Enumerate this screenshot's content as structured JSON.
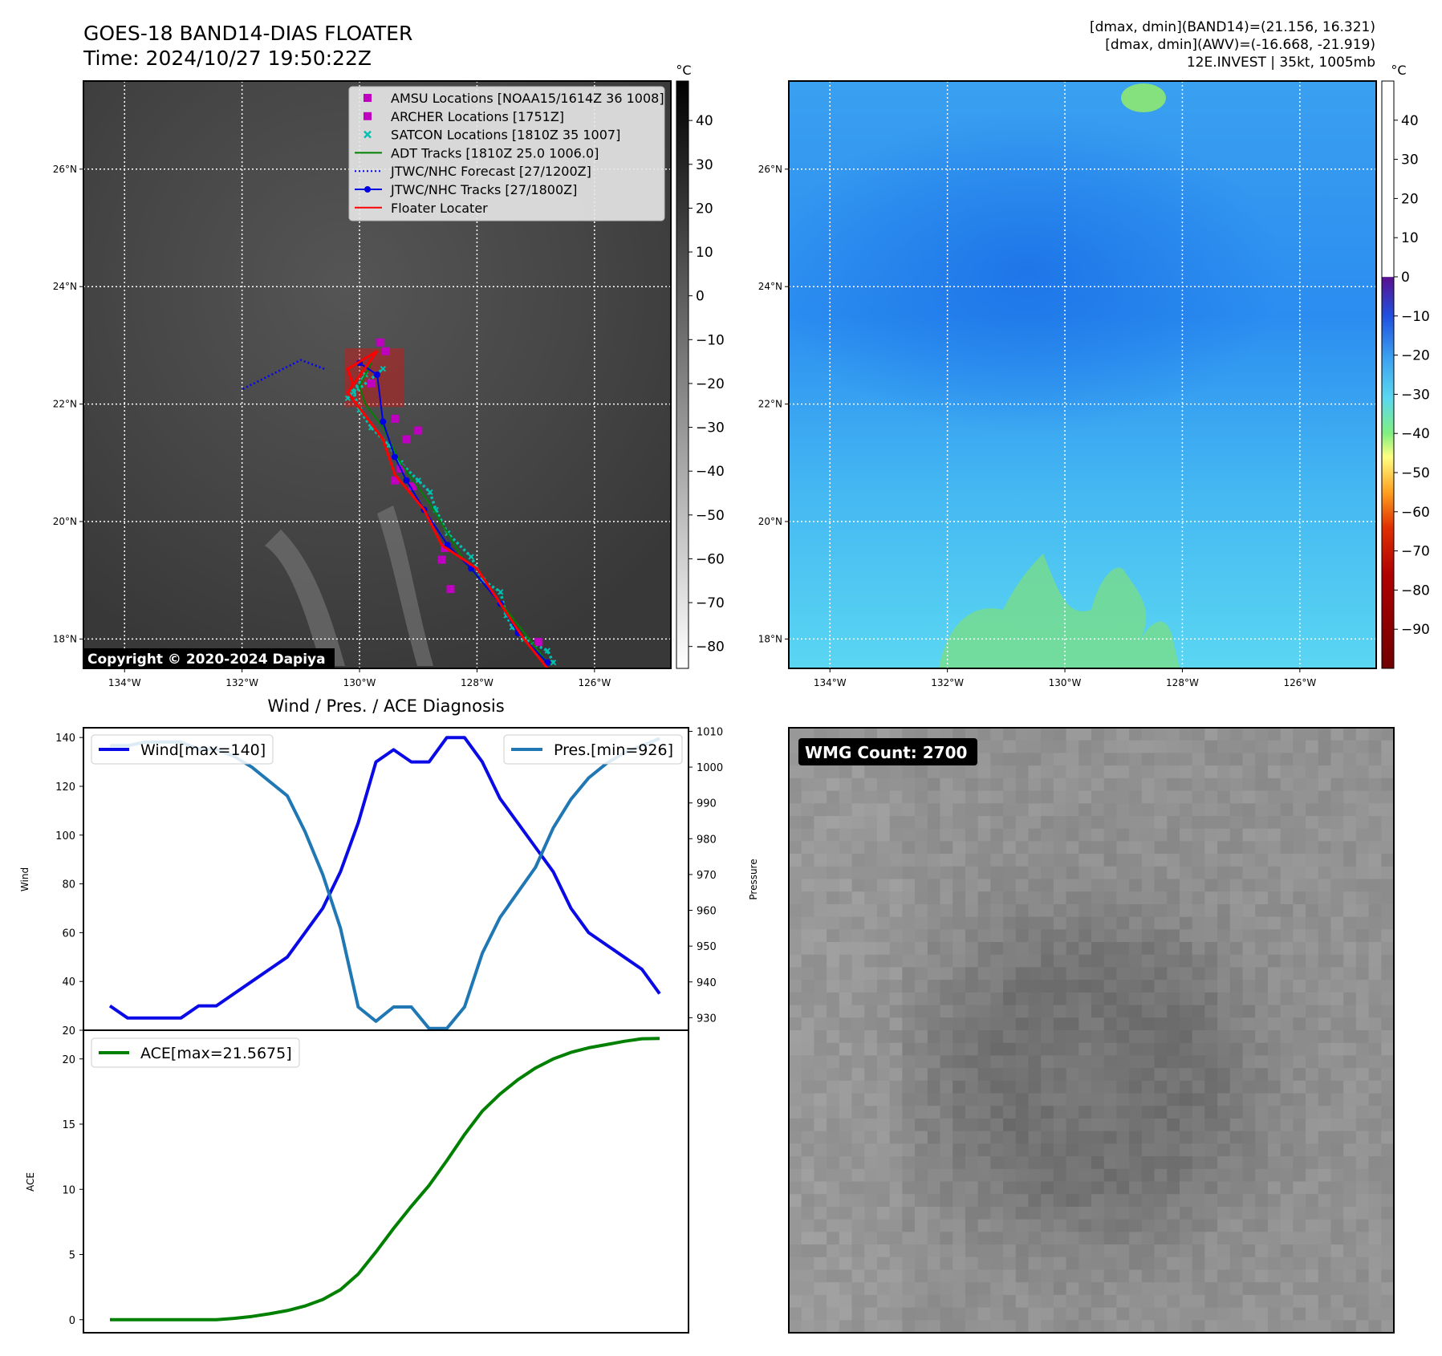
{
  "header": {
    "title": "GOES-18 BAND14-DIAS FLOATER",
    "time": "Time: 2024/10/27 19:50:22Z",
    "stats_band14": "[dmax, dmin](BAND14)=(21.156, 16.321)",
    "stats_awv": "[dmax, dmin](AWV)=(-16.668, -21.919)",
    "storm_info": "12E.INVEST | 35kt, 1005mb"
  },
  "colors": {
    "amsu": "#c000c0",
    "archer": "#c000c0",
    "satcon": "#00c0b0",
    "adt": "#008000",
    "jtwc_forecast": "#0000ff",
    "jtwc_track": "#0000e0",
    "floater": "#ff0000",
    "wind": "#0a0ae6",
    "pres": "#1f77b4",
    "ace": "#008000"
  },
  "map_ir": {
    "lon_range": [
      -134.7,
      -124.7
    ],
    "lat_range": [
      17.5,
      27.5
    ],
    "lon_ticks": [
      "134°W",
      "132°W",
      "130°W",
      "128°W",
      "126°W"
    ],
    "lon_tick_values": [
      -134,
      -132,
      -130,
      -128,
      -126
    ],
    "lat_ticks": [
      "26°N",
      "24°N",
      "22°N",
      "20°N",
      "18°N"
    ],
    "lat_tick_values": [
      26,
      24,
      22,
      20,
      18
    ],
    "copyright": "Copyright © 2020-2024 Dapiya",
    "colorbar_unit": "°C",
    "colorbar_ticks": [
      "40",
      "30",
      "20",
      "10",
      "0",
      "−10",
      "−20",
      "−30",
      "−40",
      "−50",
      "−60",
      "−70",
      "−80"
    ],
    "colorbar_tick_values": [
      40,
      30,
      20,
      10,
      0,
      -10,
      -20,
      -30,
      -40,
      -50,
      -60,
      -70,
      -80
    ],
    "colorbar_range": [
      -85,
      49
    ],
    "legend": [
      {
        "key": "amsu",
        "label": "AMSU Locations [NOAA15/1614Z 36 1008]"
      },
      {
        "key": "archer",
        "label": "ARCHER Locations [1751Z]"
      },
      {
        "key": "satcon",
        "label": "SATCON Locations [1810Z 35 1007]"
      },
      {
        "key": "adt",
        "label": "ADT Tracks [1810Z 25.0 1006.0]"
      },
      {
        "key": "jtwc_forecast",
        "label": "JTWC/NHC Forecast [27/1200Z]"
      },
      {
        "key": "jtwc_track",
        "label": "JTWC/NHC Tracks [27/1800Z]"
      },
      {
        "key": "floater",
        "label": "Floater Locater"
      }
    ],
    "jtwc_forecast_points": [
      [
        -130.6,
        22.6
      ],
      [
        -131.0,
        22.75
      ],
      [
        -132.0,
        22.25
      ]
    ],
    "jtwc_track_points": [
      [
        -126.8,
        17.6
      ],
      [
        -127.3,
        18.1
      ],
      [
        -127.6,
        18.6
      ],
      [
        -128.1,
        19.2
      ],
      [
        -128.5,
        19.6
      ],
      [
        -128.9,
        20.2
      ],
      [
        -129.2,
        20.7
      ],
      [
        -129.4,
        21.1
      ],
      [
        -129.6,
        21.7
      ],
      [
        -129.7,
        22.5
      ],
      [
        -130.0,
        22.7
      ]
    ],
    "floater_points": [
      [
        -126.8,
        17.5
      ],
      [
        -127.2,
        18.0
      ],
      [
        -127.6,
        18.6
      ],
      [
        -128.0,
        19.2
      ],
      [
        -128.6,
        19.6
      ],
      [
        -128.9,
        20.2
      ],
      [
        -129.4,
        20.8
      ],
      [
        -129.6,
        21.4
      ],
      [
        -129.9,
        21.8
      ],
      [
        -130.2,
        22.2
      ],
      [
        -129.7,
        22.9
      ],
      [
        -130.2,
        22.6
      ],
      [
        -130.1,
        22.3
      ]
    ],
    "adt_points": [
      [
        -126.8,
        17.6
      ],
      [
        -127.5,
        18.5
      ],
      [
        -128.2,
        19.3
      ],
      [
        -128.8,
        20.3
      ],
      [
        -129.3,
        21.0
      ],
      [
        -129.6,
        21.6
      ],
      [
        -129.9,
        22.0
      ],
      [
        -130.0,
        22.3
      ],
      [
        -129.8,
        22.7
      ]
    ],
    "satcon_points": [
      [
        -126.7,
        17.6
      ],
      [
        -126.8,
        17.8
      ],
      [
        -127.2,
        18.0
      ],
      [
        -127.4,
        18.2
      ],
      [
        -127.5,
        18.4
      ],
      [
        -127.6,
        18.8
      ],
      [
        -127.9,
        19.0
      ],
      [
        -128.1,
        19.4
      ],
      [
        -128.5,
        19.8
      ],
      [
        -128.7,
        20.2
      ],
      [
        -128.8,
        20.5
      ],
      [
        -129.0,
        20.7
      ],
      [
        -129.3,
        21.0
      ],
      [
        -129.5,
        21.3
      ],
      [
        -129.8,
        21.6
      ],
      [
        -130.0,
        21.9
      ],
      [
        -130.1,
        22.2
      ],
      [
        -129.9,
        22.5
      ],
      [
        -130.2,
        22.1
      ],
      [
        -129.6,
        22.6
      ]
    ],
    "amsu_points": [
      [
        -129.65,
        23.05
      ],
      [
        -129.55,
        22.9
      ],
      [
        -129.8,
        22.35
      ],
      [
        -129.4,
        21.75
      ],
      [
        -129.0,
        21.55
      ],
      [
        -129.2,
        21.4
      ],
      [
        -129.3,
        20.9
      ],
      [
        -129.4,
        20.7
      ],
      [
        -129.1,
        20.6
      ],
      [
        -128.55,
        19.55
      ],
      [
        -128.6,
        19.35
      ],
      [
        -128.45,
        18.85
      ],
      [
        -126.95,
        17.95
      ]
    ],
    "floater_box": {
      "lon": [
        -130.25,
        -129.25
      ],
      "lat": [
        21.95,
        22.95
      ]
    }
  },
  "map_awv": {
    "lon_range": [
      -134.7,
      -124.7
    ],
    "lat_range": [
      17.5,
      27.5
    ],
    "lon_ticks": [
      "134°W",
      "132°W",
      "130°W",
      "128°W",
      "126°W"
    ],
    "lon_tick_values": [
      -134,
      -132,
      -130,
      -128,
      -126
    ],
    "lat_ticks": [
      "26°N",
      "24°N",
      "22°N",
      "20°N",
      "18°N"
    ],
    "lat_tick_values": [
      26,
      24,
      22,
      20,
      18
    ],
    "colorbar_unit": "°C",
    "colorbar_ticks": [
      "40",
      "30",
      "20",
      "10",
      "0",
      "−10",
      "−20",
      "−30",
      "−40",
      "−50",
      "−60",
      "−70",
      "−80",
      "−90"
    ],
    "colorbar_tick_values": [
      40,
      30,
      20,
      10,
      0,
      -10,
      -20,
      -30,
      -40,
      -50,
      -60,
      -70,
      -80,
      -90
    ],
    "colorbar_range": [
      -100,
      50
    ]
  },
  "chart_data": [
    {
      "type": "line",
      "title": "Wind / Pres. / ACE Diagnosis",
      "ylabel": "Wind",
      "ylabel_right": "Pressure",
      "ylim": [
        20,
        144
      ],
      "ylim_right": [
        926.5,
        1011
      ],
      "yticks": [
        20,
        40,
        60,
        80,
        100,
        120,
        140
      ],
      "yticks_right": [
        930,
        940,
        950,
        960,
        970,
        980,
        990,
        1000,
        1010
      ],
      "series": [
        {
          "name": "Wind[max=140]",
          "axis": "left",
          "color": "#0a0ae6",
          "values": [
            30,
            25,
            25,
            25,
            25,
            30,
            30,
            35,
            40,
            45,
            50,
            60,
            70,
            85,
            105,
            130,
            135,
            130,
            130,
            140,
            140,
            130,
            115,
            105,
            95,
            85,
            70,
            60,
            55,
            50,
            45,
            35
          ]
        },
        {
          "name": "Pres.[min=926]",
          "axis": "right",
          "color": "#1f77b4",
          "values": [
            1006,
            1006,
            1007,
            1007,
            1007,
            1005,
            1005,
            1003,
            1000,
            996,
            992,
            982,
            970,
            955,
            933,
            929,
            933,
            933,
            927,
            927,
            933,
            948,
            958,
            965,
            972,
            983,
            991,
            997,
            1001,
            1004,
            1006,
            1008
          ]
        }
      ]
    },
    {
      "type": "line",
      "ylabel": "ACE",
      "ylim": [
        -1,
        22.2
      ],
      "yticks": [
        0,
        5,
        10,
        15,
        20
      ],
      "series": [
        {
          "name": "ACE[max=21.5675]",
          "color": "#008000",
          "values": [
            0,
            0,
            0,
            0,
            0,
            0,
            0,
            0.1,
            0.25,
            0.45,
            0.7,
            1.05,
            1.55,
            2.3,
            3.5,
            5.2,
            7.0,
            8.7,
            10.3,
            12.2,
            14.2,
            16.0,
            17.3,
            18.4,
            19.3,
            20.0,
            20.5,
            20.85,
            21.1,
            21.35,
            21.55,
            21.5675
          ]
        }
      ]
    }
  ],
  "wmg_panel": {
    "label": "WMG Count: 2700"
  }
}
